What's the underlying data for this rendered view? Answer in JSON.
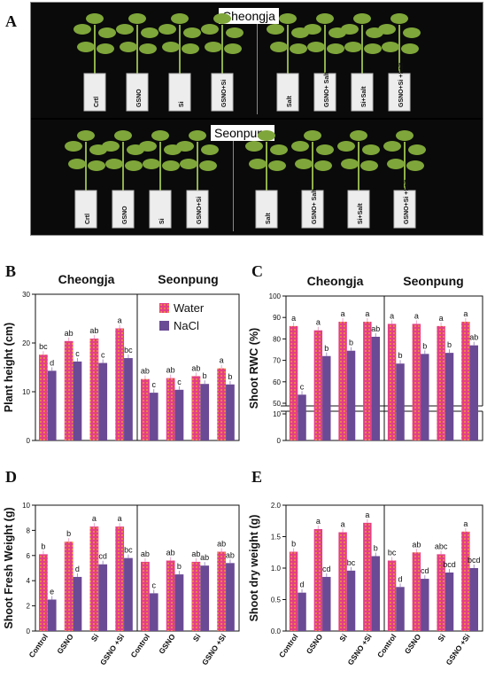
{
  "panel_letters": {
    "A": "A",
    "B": "B",
    "C": "C",
    "D": "D",
    "E": "E"
  },
  "photo": {
    "top_cultivar": "Cheongja",
    "bottom_cultivar": "Seonpung",
    "top_left_pots": [
      "Crtl",
      "GSNO",
      "Si",
      "GSNO+Si"
    ],
    "top_right_pots": [
      "Salt",
      "GSNO+ Salt",
      "Si+Salt",
      "GSNO+Si +Salt"
    ],
    "bottom_left_pots": [
      "Crtl",
      "GSNO",
      "Si",
      "GSNO+Si"
    ],
    "bottom_right_pots": [
      "Salt",
      "GSNO+ Salt",
      "Si+Salt",
      "GSNO+Si +Salt"
    ]
  },
  "colors": {
    "water": "#e43f86",
    "nacl": "#6a4a94",
    "water_dot": "#f2b21c"
  },
  "chart_data": [
    {
      "panel": "B",
      "type": "bar",
      "ylabel": "Plant height (cm)",
      "ylim": [
        0,
        30
      ],
      "yticks": [
        0,
        10,
        20,
        30
      ],
      "groups": [
        "Cheongja",
        "Seonpung"
      ],
      "legend": [
        "Water",
        "NaCl"
      ],
      "water": [
        17.6,
        20.4,
        20.9,
        23.0,
        12.6,
        12.8,
        13.2,
        14.8
      ],
      "nacl": [
        14.3,
        16.2,
        15.9,
        16.9,
        9.8,
        10.4,
        11.6,
        11.5
      ],
      "water_labels": [
        "bc",
        "ab",
        "ab",
        "a",
        "ab",
        "ab",
        "ab",
        "a"
      ],
      "nacl_labels": [
        "d",
        "c",
        "c",
        "bc",
        "c",
        "c",
        "b",
        "b"
      ]
    },
    {
      "panel": "C",
      "type": "bar",
      "ylabel": "Shoot RWC (%)",
      "ylim": [
        0,
        100
      ],
      "yticks": [
        0,
        10,
        50,
        60,
        70,
        80,
        90,
        100
      ],
      "axis_break": [
        10,
        50
      ],
      "groups": [
        "Cheongja",
        "Seonpung"
      ],
      "water": [
        86,
        84,
        88,
        88,
        87,
        87,
        86,
        88
      ],
      "nacl": [
        54,
        72,
        74.5,
        81,
        68.5,
        73,
        73.5,
        77
      ],
      "water_labels": [
        "a",
        "a",
        "a",
        "a",
        "a",
        "a",
        "a",
        "a"
      ],
      "nacl_labels": [
        "c",
        "b",
        "b",
        "ab",
        "b",
        "b",
        "b",
        "ab"
      ]
    },
    {
      "panel": "D",
      "type": "bar",
      "ylabel": "Shoot Fresh Weight (g)",
      "ylim": [
        0,
        10
      ],
      "yticks": [
        0,
        2,
        4,
        6,
        8,
        10
      ],
      "categories": [
        "Control",
        "GSNO",
        "Si",
        "GSNO +Si",
        "Control",
        "GSNO",
        "Si",
        "GSNO +Si"
      ],
      "water": [
        6.1,
        7.1,
        8.3,
        8.3,
        5.5,
        5.6,
        5.5,
        6.3
      ],
      "nacl": [
        2.5,
        4.3,
        5.3,
        5.8,
        3.0,
        4.5,
        5.2,
        5.4
      ],
      "water_labels": [
        "b",
        "b",
        "a",
        "a",
        "ab",
        "ab",
        "ab",
        "ab"
      ],
      "nacl_labels": [
        "e",
        "d",
        "cd",
        "bc",
        "c",
        "b",
        "ab",
        "ab"
      ]
    },
    {
      "panel": "E",
      "type": "bar",
      "ylabel": "Shoot dry weight (g)",
      "ylim": [
        0,
        2.0
      ],
      "yticks": [
        0.0,
        0.5,
        1.0,
        1.5,
        2.0
      ],
      "categories": [
        "Control",
        "GSNO",
        "Si",
        "GSNO +Si",
        "Control",
        "GSNO",
        "Si",
        "GSNO +Si"
      ],
      "water": [
        1.26,
        1.62,
        1.57,
        1.72,
        1.12,
        1.25,
        1.22,
        1.58
      ],
      "nacl": [
        0.61,
        0.86,
        0.96,
        1.19,
        0.7,
        0.83,
        0.93,
        1.0
      ],
      "water_labels": [
        "b",
        "a",
        "a",
        "a",
        "bc",
        "ab",
        "abc",
        "a"
      ],
      "nacl_labels": [
        "d",
        "cd",
        "bc",
        "b",
        "d",
        "cd",
        "bcd",
        "bcd"
      ]
    }
  ]
}
